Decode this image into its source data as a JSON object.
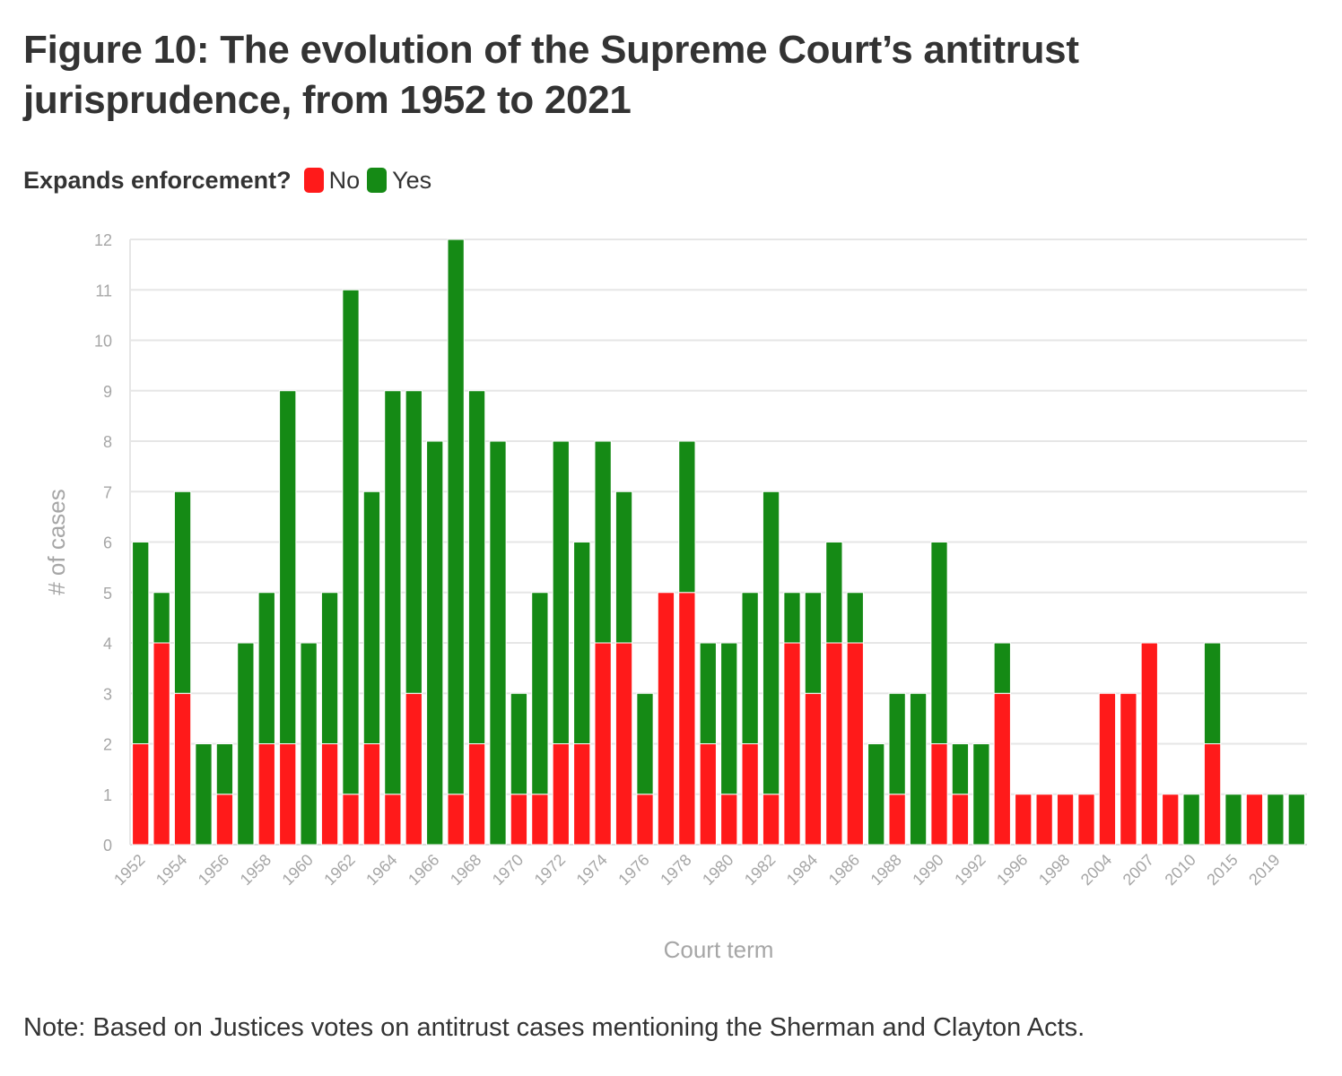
{
  "title": "Figure 10: The evolution of the Supreme Court’s antitrust jurisprudence, from 1952 to 2021",
  "legend": {
    "title": "Expands enforcement?",
    "items": [
      {
        "label": "No",
        "color": "#ff1a1a"
      },
      {
        "label": "Yes",
        "color": "#158a15"
      }
    ]
  },
  "note": "Note: Based on Justices votes on antitrust cases mentioning the Sherman and Clayton Acts.",
  "chart_data": {
    "type": "bar",
    "stacked": true,
    "title": "Figure 10: The evolution of the Supreme Court’s antitrust jurisprudence, from 1952 to 2021",
    "xlabel": "Court term",
    "ylabel": "# of cases",
    "ylim": [
      0,
      12
    ],
    "yticks": [
      0,
      1,
      2,
      3,
      4,
      5,
      6,
      7,
      8,
      9,
      10,
      11,
      12
    ],
    "grid": true,
    "legend_position": "top-left",
    "categories": [
      "1952",
      "1953",
      "1954",
      "1955",
      "1956",
      "1957",
      "1958",
      "1959",
      "1960",
      "1961",
      "1962",
      "1963",
      "1964",
      "1965",
      "1966",
      "1967",
      "1968",
      "1969",
      "1970",
      "1971",
      "1972",
      "1973",
      "1974",
      "1975",
      "1976",
      "1977",
      "1978",
      "1979",
      "1980",
      "1981",
      "1982",
      "1983",
      "1984",
      "1985",
      "1986",
      "1987",
      "1988",
      "1989",
      "1990",
      "1991",
      "1992",
      "1993",
      "1996",
      "1997",
      "1998",
      "2000",
      "2004",
      "2005",
      "2007",
      "2009",
      "2010",
      "2013",
      "2015",
      "2017",
      "2019",
      "2021"
    ],
    "tick_labels": [
      "1952",
      "1954",
      "1956",
      "1958",
      "1960",
      "1962",
      "1964",
      "1966",
      "1968",
      "1970",
      "1972",
      "1974",
      "1976",
      "1978",
      "1980",
      "1982",
      "1984",
      "1986",
      "1988",
      "1990",
      "1992",
      "1996",
      "1998",
      "2004",
      "2007",
      "2010",
      "2015",
      "2019"
    ],
    "series": [
      {
        "name": "No",
        "color": "#ff1a1a",
        "values": [
          2,
          4,
          3,
          0,
          1,
          0,
          2,
          2,
          0,
          2,
          1,
          2,
          1,
          3,
          0,
          1,
          2,
          0,
          1,
          1,
          2,
          2,
          4,
          4,
          1,
          5,
          5,
          2,
          1,
          2,
          1,
          4,
          3,
          4,
          4,
          0,
          1,
          0,
          2,
          1,
          0,
          3,
          1,
          1,
          1,
          1,
          3,
          3,
          4,
          1,
          0,
          2,
          0,
          1,
          0,
          0
        ]
      },
      {
        "name": "Yes",
        "color": "#158a15",
        "values": [
          4,
          1,
          4,
          2,
          1,
          4,
          3,
          7,
          4,
          3,
          10,
          5,
          8,
          6,
          8,
          11,
          7,
          8,
          2,
          4,
          6,
          4,
          4,
          3,
          2,
          0,
          3,
          2,
          3,
          3,
          6,
          1,
          2,
          2,
          1,
          2,
          2,
          3,
          4,
          1,
          2,
          1,
          0,
          0,
          0,
          0,
          0,
          0,
          0,
          0,
          1,
          2,
          1,
          0,
          1,
          1
        ]
      }
    ]
  }
}
